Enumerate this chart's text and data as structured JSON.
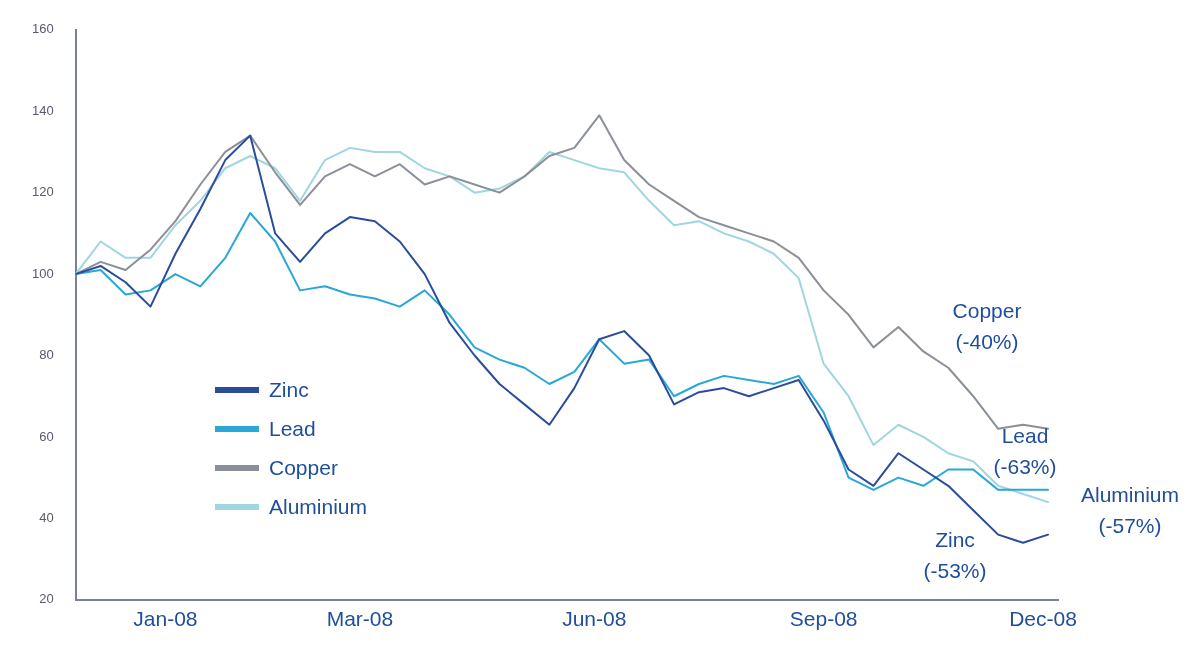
{
  "chart_data": {
    "type": "line",
    "x": [
      "2007-12-03",
      "2007-12-13",
      "2007-12-23",
      "2008-01-02",
      "2008-01-12",
      "2008-01-22",
      "2008-02-01",
      "2008-02-11",
      "2008-02-21",
      "2008-03-02",
      "2008-03-12",
      "2008-03-22",
      "2008-04-01",
      "2008-04-11",
      "2008-04-21",
      "2008-05-01",
      "2008-05-11",
      "2008-05-21",
      "2008-05-31",
      "2008-06-10",
      "2008-06-20",
      "2008-06-30",
      "2008-07-10",
      "2008-07-20",
      "2008-07-30",
      "2008-08-09",
      "2008-08-19",
      "2008-08-29",
      "2008-09-08",
      "2008-09-18",
      "2008-09-28",
      "2008-10-08",
      "2008-10-18",
      "2008-10-28",
      "2008-11-07",
      "2008-11-17",
      "2008-11-27",
      "2008-12-07",
      "2008-12-17",
      "2008-12-27"
    ],
    "series": [
      {
        "name": "Zinc",
        "color": "#2a4d9b",
        "values": [
          100,
          102,
          98,
          92,
          105,
          116,
          128,
          134,
          110,
          103,
          110,
          114,
          113,
          108,
          100,
          88,
          80,
          73,
          68,
          63,
          72,
          84,
          86,
          80,
          68,
          71,
          72,
          70,
          72,
          74,
          64,
          52,
          48,
          56,
          52,
          48,
          42,
          36,
          34,
          36
        ]
      },
      {
        "name": "Lead",
        "color": "#29a8d8",
        "values": [
          100,
          101,
          95,
          96,
          100,
          97,
          104,
          115,
          108,
          96,
          97,
          95,
          94,
          92,
          96,
          90,
          82,
          79,
          77,
          73,
          76,
          84,
          78,
          79,
          70,
          73,
          75,
          74,
          73,
          75,
          66,
          50,
          47,
          50,
          48,
          52,
          52,
          47,
          47,
          47
        ]
      },
      {
        "name": "Copper",
        "color": "#8a8f99",
        "values": [
          100,
          103,
          101,
          106,
          113,
          122,
          130,
          134,
          125,
          117,
          124,
          127,
          124,
          127,
          122,
          124,
          122,
          120,
          124,
          129,
          131,
          139,
          128,
          122,
          118,
          114,
          112,
          110,
          108,
          104,
          96,
          90,
          82,
          87,
          81,
          77,
          70,
          62,
          63,
          62
        ]
      },
      {
        "name": "Aluminium",
        "color": "#9fd6e0",
        "values": [
          100,
          108,
          104,
          104,
          112,
          118,
          126,
          129,
          126,
          118,
          128,
          131,
          130,
          130,
          126,
          124,
          120,
          121,
          124,
          130,
          128,
          126,
          125,
          118,
          112,
          113,
          110,
          108,
          105,
          99,
          78,
          70,
          58,
          63,
          60,
          56,
          54,
          48,
          46,
          44
        ]
      }
    ],
    "xlim": [
      "2007-12-03",
      "2008-12-31"
    ],
    "xticks": [
      {
        "value": "2008-01-08",
        "label": "Jan-08"
      },
      {
        "value": "2008-03-26",
        "label": "Mar-08"
      },
      {
        "value": "2008-06-28",
        "label": "Jun-08"
      },
      {
        "value": "2008-09-28",
        "label": "Sep-08"
      },
      {
        "value": "2008-12-25",
        "label": "Dec-08"
      }
    ],
    "ylim": [
      20,
      160
    ],
    "yticks": [
      20,
      40,
      60,
      80,
      100,
      120,
      140,
      160
    ],
    "annotations": [
      "Copper\n(-40%)",
      "Lead\n(-63%)",
      "Aluminium\n(-57%)",
      "Zinc\n(-53%)"
    ],
    "grid": false,
    "legend": "bottom left",
    "marker": "none",
    "line_style": "solid"
  }
}
